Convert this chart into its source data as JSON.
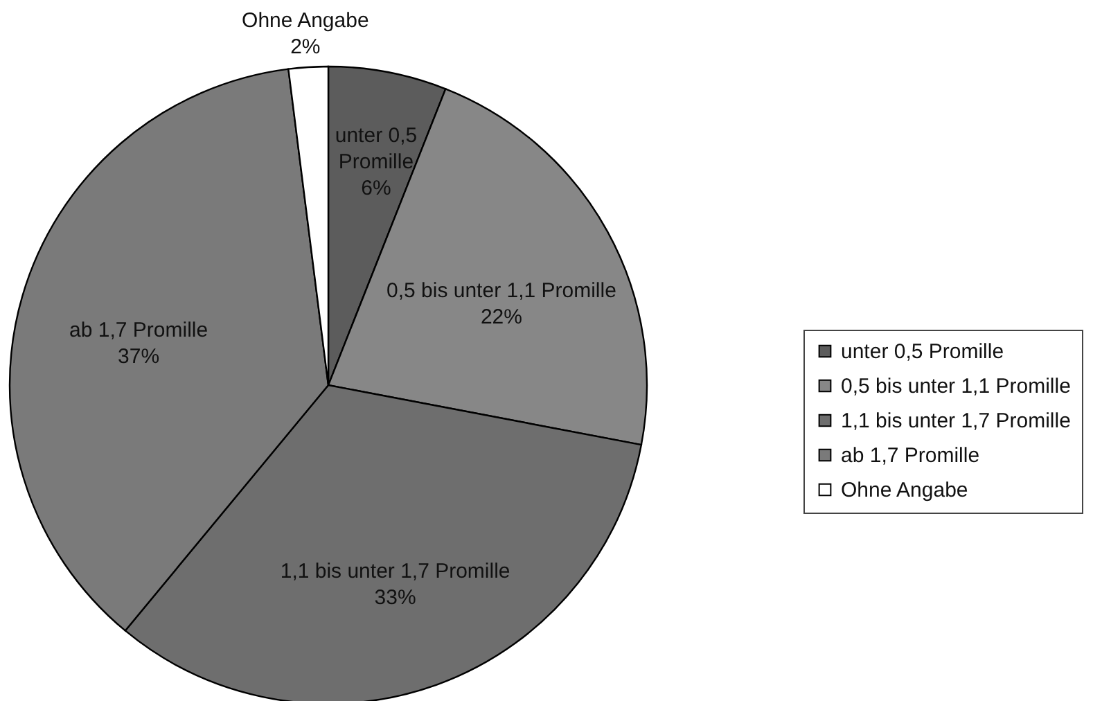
{
  "chart_data": {
    "type": "pie",
    "categories": [
      "unter 0,5 Promille",
      "0,5 bis unter 1,1 Promille",
      "1,1 bis unter 1,7 Promille",
      "ab 1,7 Promille",
      "Ohne Angabe"
    ],
    "values": [
      6,
      22,
      33,
      37,
      2
    ],
    "value_labels": [
      "6%",
      "22%",
      "33%",
      "37%",
      "2%"
    ],
    "colors": [
      "#5c5c5c",
      "#878787",
      "#6e6e6e",
      "#7a7a7a",
      "#ffffff"
    ],
    "legend": "right"
  }
}
